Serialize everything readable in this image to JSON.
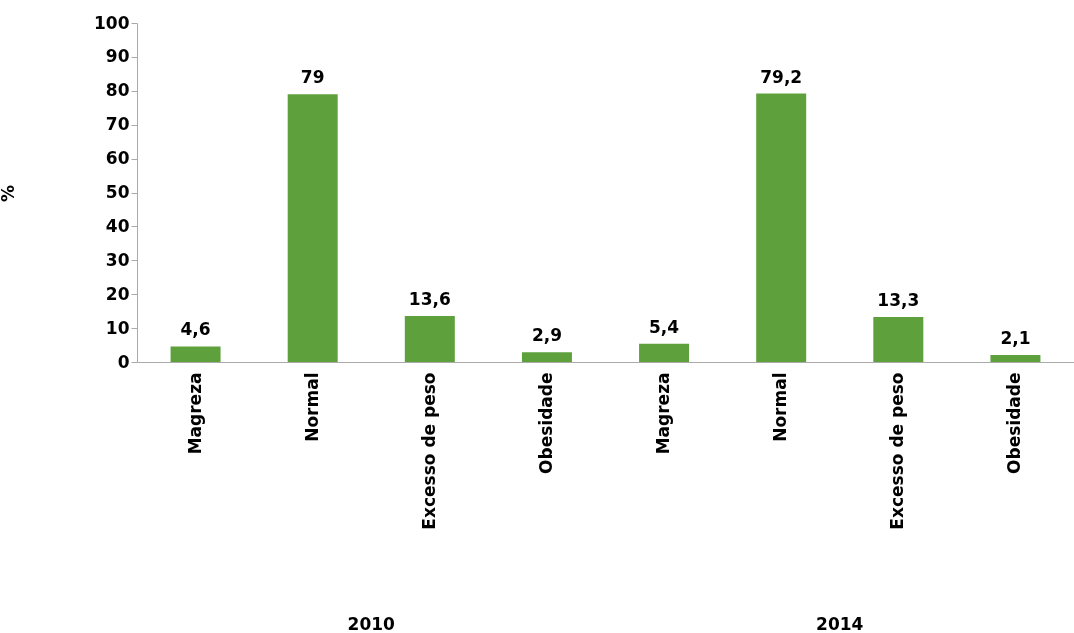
{
  "chart_data": {
    "type": "bar",
    "ylabel": "%",
    "categories": [
      "Magreza",
      "Normal",
      "Excesso de peso",
      "Obesidade",
      "Magreza",
      "Normal",
      "Excesso de peso",
      "Obesidade"
    ],
    "values": [
      4.6,
      79,
      13.6,
      2.9,
      5.4,
      79.2,
      13.3,
      2.1
    ],
    "value_labels": [
      "4,6",
      "79",
      "13,6",
      "2,9",
      "5,4",
      "79,2",
      "13,3",
      "2,1"
    ],
    "color": "#5ea13c",
    "ylim": [
      0,
      100
    ],
    "yticks": [
      0,
      10,
      20,
      30,
      40,
      50,
      60,
      70,
      80,
      90,
      100
    ],
    "grid": false,
    "annotations": [
      "2010",
      "2014"
    ]
  }
}
